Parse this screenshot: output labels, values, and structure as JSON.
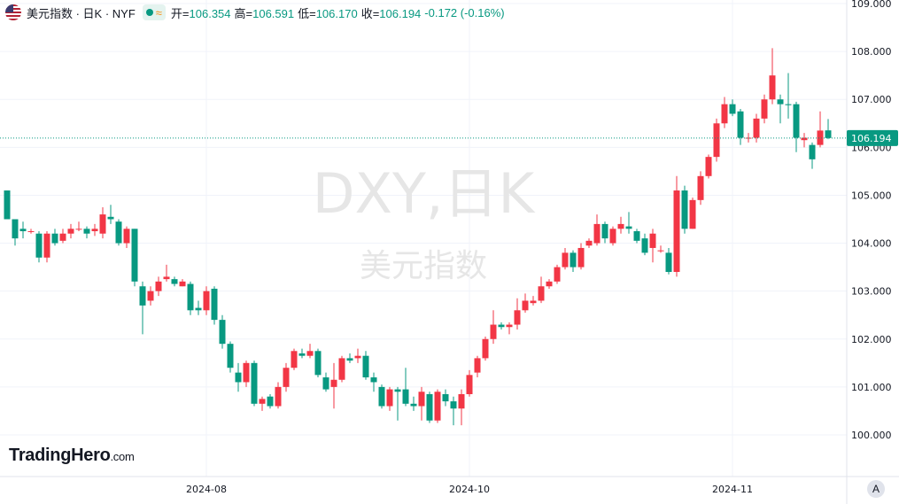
{
  "header": {
    "symbol": "美元指数 · 日K · NYF",
    "wave": "≈",
    "items": [
      {
        "label": "开=",
        "value": "106.354"
      },
      {
        "label": "高=",
        "value": "106.591"
      },
      {
        "label": "低=",
        "value": "106.170"
      },
      {
        "label": "收=",
        "value": "106.194"
      }
    ],
    "change": "-0.172 (-0.16%)"
  },
  "logo": {
    "name": "TradingHero",
    "suffix": ".com"
  },
  "scale_button": "A",
  "chart_data": {
    "type": "candlestick",
    "watermark": "DXY,日K",
    "watermark_sub": "美元指数",
    "up_color": "#f23645",
    "down_color": "#089981",
    "last_price": 106.194,
    "categories": [
      null,
      null,
      null,
      null,
      null,
      null,
      null,
      null,
      null,
      null,
      null,
      null,
      null,
      null,
      null,
      null,
      null,
      null,
      null,
      null,
      null,
      null,
      null,
      null,
      null,
      "2024-08",
      null,
      null,
      null,
      null,
      null,
      null,
      null,
      null,
      null,
      null,
      null,
      null,
      null,
      null,
      null,
      null,
      null,
      null,
      null,
      null,
      null,
      null,
      null,
      null,
      null,
      null,
      null,
      null,
      null,
      null,
      null,
      null,
      "2024-10",
      null,
      null,
      null,
      null,
      null,
      null,
      null,
      null,
      null,
      null,
      null,
      null,
      null,
      null,
      null,
      null,
      null,
      null,
      null,
      null,
      null,
      null,
      null,
      null,
      null,
      null,
      null,
      null,
      null,
      null,
      null,
      null,
      "2024-11",
      null,
      null,
      null,
      null,
      null,
      null,
      null,
      null,
      null,
      null,
      null,
      null
    ],
    "open": [
      105.1,
      104.5,
      104.3,
      104.25,
      104.2,
      103.7,
      104.2,
      104.05,
      104.2,
      104.3,
      104.3,
      104.25,
      104.2,
      104.55,
      104.45,
      104.0,
      104.3,
      103.1,
      102.8,
      103.0,
      103.25,
      103.25,
      103.1,
      103.15,
      102.65,
      102.6,
      103.05,
      102.4,
      101.9,
      101.3,
      101.1,
      101.5,
      100.65,
      100.8,
      100.6,
      101.0,
      101.4,
      101.7,
      101.65,
      101.75,
      101.2,
      101.0,
      101.15,
      101.6,
      101.6,
      101.65,
      101.2,
      101.0,
      100.6,
      100.95,
      100.95,
      100.65,
      100.6,
      100.85,
      100.3,
      100.85,
      100.7,
      100.55,
      100.85,
      101.3,
      101.6,
      102.0,
      102.3,
      102.25,
      102.3,
      102.6,
      102.75,
      102.8,
      103.1,
      103.2,
      103.5,
      103.8,
      103.5,
      103.95,
      104.0,
      104.4,
      104.0,
      104.3,
      104.35,
      104.25,
      104.1,
      103.9,
      103.85,
      103.8,
      103.4,
      105.1,
      104.3,
      104.9,
      105.4,
      105.8,
      106.5,
      106.9,
      106.75,
      106.2,
      106.2,
      106.6,
      107.0,
      107.0,
      106.9,
      106.9,
      106.15,
      106.05,
      106.05,
      106.354
    ],
    "high": [
      105.1,
      104.5,
      104.45,
      104.3,
      104.25,
      104.25,
      104.3,
      104.3,
      104.4,
      104.45,
      104.35,
      104.4,
      104.75,
      104.8,
      104.5,
      104.35,
      104.3,
      103.2,
      103.1,
      103.3,
      103.55,
      103.3,
      103.25,
      103.2,
      102.8,
      103.1,
      103.1,
      102.5,
      101.95,
      101.5,
      101.55,
      101.55,
      100.8,
      100.85,
      101.1,
      101.5,
      101.8,
      101.8,
      101.9,
      101.8,
      101.3,
      101.5,
      101.65,
      101.7,
      101.8,
      101.75,
      101.3,
      101.05,
      101.0,
      101.0,
      101.4,
      100.8,
      101.0,
      100.9,
      100.95,
      100.95,
      100.8,
      100.95,
      101.35,
      101.65,
      102.05,
      102.6,
      102.35,
      102.35,
      102.85,
      102.95,
      102.9,
      103.3,
      103.25,
      103.55,
      103.9,
      103.85,
      104.0,
      104.1,
      104.6,
      104.45,
      104.35,
      104.55,
      104.65,
      104.3,
      104.2,
      104.3,
      103.95,
      103.9,
      105.4,
      105.2,
      104.95,
      105.5,
      105.85,
      106.6,
      107.05,
      107.0,
      106.8,
      106.3,
      106.7,
      107.1,
      108.07,
      107.1,
      107.55,
      106.95,
      106.3,
      106.1,
      106.75,
      106.591
    ],
    "low": [
      104.5,
      103.95,
      104.1,
      104.2,
      103.6,
      103.6,
      103.95,
      104.0,
      104.1,
      104.25,
      104.1,
      104.15,
      104.1,
      104.4,
      103.95,
      103.9,
      103.1,
      102.1,
      102.7,
      102.9,
      103.2,
      103.1,
      103.1,
      102.5,
      102.5,
      102.5,
      102.3,
      101.8,
      101.3,
      100.9,
      101.0,
      100.6,
      100.5,
      100.55,
      100.55,
      100.9,
      101.35,
      101.6,
      101.6,
      101.2,
      100.9,
      100.55,
      101.1,
      101.5,
      101.5,
      101.15,
      100.9,
      100.55,
      100.5,
      100.3,
      100.6,
      100.5,
      100.3,
      100.25,
      100.25,
      100.6,
      100.2,
      100.2,
      100.8,
      101.2,
      101.55,
      101.9,
      102.2,
      102.1,
      102.2,
      102.55,
      102.7,
      102.75,
      103.05,
      103.15,
      103.45,
      103.4,
      103.45,
      103.9,
      103.95,
      104.0,
      103.95,
      104.2,
      104.2,
      104.0,
      103.75,
      103.6,
      103.8,
      103.35,
      103.3,
      104.2,
      104.3,
      104.8,
      105.35,
      105.7,
      106.4,
      106.65,
      106.05,
      106.1,
      106.1,
      106.5,
      106.9,
      106.5,
      106.6,
      105.9,
      106.0,
      105.55,
      106.0,
      106.17
    ],
    "close": [
      104.5,
      104.1,
      104.25,
      104.25,
      103.7,
      104.2,
      104.0,
      104.2,
      104.3,
      104.3,
      104.2,
      104.3,
      104.6,
      104.5,
      104.0,
      104.3,
      103.2,
      102.7,
      103.0,
      103.2,
      103.3,
      103.15,
      103.2,
      102.6,
      102.6,
      103.0,
      102.4,
      101.9,
      101.4,
      101.1,
      101.5,
      100.65,
      100.75,
      100.6,
      101.0,
      101.4,
      101.75,
      101.65,
      101.75,
      101.25,
      100.95,
      101.15,
      101.6,
      101.55,
      101.65,
      101.2,
      101.1,
      100.6,
      100.95,
      100.9,
      100.65,
      100.6,
      100.9,
      100.3,
      100.9,
      100.7,
      100.55,
      100.85,
      101.25,
      101.6,
      102.0,
      102.3,
      102.25,
      102.3,
      102.6,
      102.8,
      102.8,
      103.1,
      103.2,
      103.5,
      103.8,
      103.5,
      103.9,
      104.05,
      104.4,
      104.1,
      104.3,
      104.4,
      104.3,
      104.05,
      103.8,
      104.2,
      103.85,
      103.4,
      105.1,
      104.3,
      104.9,
      105.4,
      105.8,
      106.5,
      106.9,
      106.7,
      106.2,
      106.2,
      106.6,
      107.0,
      107.5,
      106.9,
      106.88,
      106.2,
      106.2,
      105.75,
      106.35,
      106.194
    ],
    "ylim": [
      99.131,
      109.074
    ],
    "yticks": [
      {
        "value": 100,
        "label": "100.000"
      },
      {
        "value": 101,
        "label": "101.000"
      },
      {
        "value": 102,
        "label": "102.000"
      },
      {
        "value": 103,
        "label": "103.000"
      },
      {
        "value": 104,
        "label": "104.000"
      },
      {
        "value": 105,
        "label": "105.000"
      },
      {
        "value": 106,
        "label": "106.000"
      },
      {
        "value": 107,
        "label": "107.000"
      },
      {
        "value": 108,
        "label": "108.000"
      },
      {
        "value": 109,
        "label": "109.000"
      }
    ],
    "grid": true
  }
}
